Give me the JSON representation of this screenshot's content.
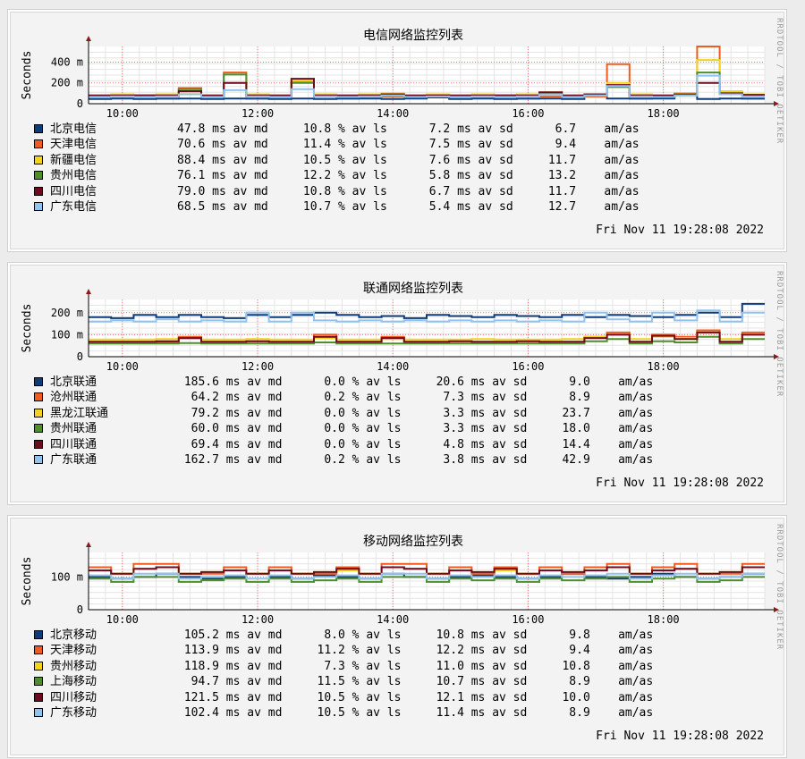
{
  "watermark": "RRDTOOL / TOBI OETIKER",
  "ylabel": "Seconds",
  "timestamp": "Fri Nov 11 19:28:08 2022",
  "x_ticks": [
    "10:00",
    "12:00",
    "14:00",
    "16:00",
    "18:00"
  ],
  "panels": [
    {
      "title": "电信网络监控列表",
      "y_ticks": [
        "0",
        "200 m",
        "400 m"
      ],
      "legend": [
        {
          "name": "北京电信",
          "stats": "47.8 ms av md     10.8 % av ls      7.2 ms av sd      6.7    am/as",
          "color": "#0d3c7a"
        },
        {
          "name": "天津电信",
          "stats": "70.6 ms av md     11.4 % av ls      7.5 ms av sd      9.4    am/as",
          "color": "#f25a1f"
        },
        {
          "name": "新疆电信",
          "stats": "88.4 ms av md     10.5 % av ls      7.6 ms av sd     11.7    am/as",
          "color": "#f5d21b"
        },
        {
          "name": "贵州电信",
          "stats": "76.1 ms av md     12.2 % av ls      5.8 ms av sd     13.2    am/as",
          "color": "#4f8f2a"
        },
        {
          "name": "四川电信",
          "stats": "79.0 ms av md     10.8 % av ls      6.7 ms av sd     11.7    am/as",
          "color": "#6e0a1e"
        },
        {
          "name": "广东电信",
          "stats": "68.5 ms av md     10.7 % av ls      5.4 ms av sd     12.7    am/as",
          "color": "#8fc3f0"
        }
      ]
    },
    {
      "title": "联通网络监控列表",
      "y_ticks": [
        "0",
        "100 m",
        "200 m"
      ],
      "legend": [
        {
          "name": "北京联通",
          "stats": " 185.6 ms av md      0.0 % av ls     20.6 ms av sd      9.0    am/as",
          "color": "#0d3c7a"
        },
        {
          "name": "沧州联通",
          "stats": "  64.2 ms av md      0.2 % av ls      7.3 ms av sd      8.9    am/as",
          "color": "#f25a1f"
        },
        {
          "name": "黑龙江联通",
          "stats": "  79.2 ms av md      0.0 % av ls      3.3 ms av sd     23.7    am/as",
          "color": "#f5d21b"
        },
        {
          "name": "贵州联通",
          "stats": "  60.0 ms av md      0.0 % av ls      3.3 ms av sd     18.0    am/as",
          "color": "#4f8f2a"
        },
        {
          "name": "四川联通",
          "stats": "  69.4 ms av md      0.0 % av ls      4.8 ms av sd     14.4    am/as",
          "color": "#6e0a1e"
        },
        {
          "name": "广东联通",
          "stats": " 162.7 ms av md      0.2 % av ls      3.8 ms av sd     42.9    am/as",
          "color": "#8fc3f0"
        }
      ]
    },
    {
      "title": "移动网络监控列表",
      "y_ticks": [
        "0",
        "100 m"
      ],
      "legend": [
        {
          "name": "北京移动",
          "stats": " 105.2 ms av md      8.0 % av ls     10.8 ms av sd      9.8    am/as",
          "color": "#0d3c7a"
        },
        {
          "name": "天津移动",
          "stats": " 113.9 ms av md     11.2 % av ls     12.2 ms av sd      9.4    am/as",
          "color": "#f25a1f"
        },
        {
          "name": "贵州移动",
          "stats": " 118.9 ms av md      7.3 % av ls     11.0 ms av sd     10.8    am/as",
          "color": "#f5d21b"
        },
        {
          "name": "上海移动",
          "stats": "  94.7 ms av md     11.5 % av ls     10.7 ms av sd      8.9    am/as",
          "color": "#4f8f2a"
        },
        {
          "name": "四川移动",
          "stats": " 121.5 ms av md     10.5 % av ls     12.1 ms av sd     10.0    am/as",
          "color": "#6e0a1e"
        },
        {
          "name": "广东移动",
          "stats": " 102.4 ms av md     10.5 % av ls     11.4 ms av sd      8.9    am/as",
          "color": "#8fc3f0"
        }
      ]
    }
  ],
  "chart_data": [
    {
      "type": "line",
      "title": "电信网络监控列表",
      "ylabel": "Seconds",
      "ylim": [
        0,
        0.55
      ],
      "x_ticks": [
        "10:00",
        "12:00",
        "14:00",
        "16:00",
        "18:00"
      ],
      "series": [
        {
          "name": "北京电信",
          "values": [
            0.045,
            0.05,
            0.045,
            0.048,
            0.05,
            0.045,
            0.05,
            0.048,
            0.045,
            0.05,
            0.045,
            0.048,
            0.05,
            0.045,
            0.05,
            0.06,
            0.045,
            0.05,
            0.045,
            0.048,
            0.05,
            0.045,
            0.08,
            0.05,
            0.048,
            0.05,
            0.1,
            0.045,
            0.05,
            0.048
          ]
        },
        {
          "name": "天津电信",
          "values": [
            0.07,
            0.07,
            0.072,
            0.07,
            0.15,
            0.07,
            0.3,
            0.07,
            0.07,
            0.21,
            0.07,
            0.07,
            0.07,
            0.07,
            0.07,
            0.07,
            0.07,
            0.07,
            0.07,
            0.07,
            0.07,
            0.07,
            0.07,
            0.38,
            0.07,
            0.07,
            0.08,
            0.55,
            0.09,
            0.08
          ]
        },
        {
          "name": "新疆电信",
          "values": [
            0.085,
            0.09,
            0.085,
            0.09,
            0.11,
            0.085,
            0.2,
            0.09,
            0.085,
            0.22,
            0.09,
            0.085,
            0.09,
            0.1,
            0.085,
            0.09,
            0.085,
            0.09,
            0.085,
            0.09,
            0.11,
            0.085,
            0.09,
            0.2,
            0.09,
            0.085,
            0.1,
            0.42,
            0.12,
            0.09
          ]
        },
        {
          "name": "贵州电信",
          "values": [
            0.075,
            0.075,
            0.08,
            0.075,
            0.14,
            0.075,
            0.28,
            0.075,
            0.075,
            0.2,
            0.075,
            0.075,
            0.08,
            0.075,
            0.075,
            0.08,
            0.075,
            0.075,
            0.08,
            0.075,
            0.1,
            0.075,
            0.08,
            0.16,
            0.075,
            0.075,
            0.09,
            0.3,
            0.1,
            0.08
          ]
        },
        {
          "name": "四川电信",
          "values": [
            0.078,
            0.08,
            0.078,
            0.08,
            0.12,
            0.078,
            0.2,
            0.08,
            0.078,
            0.24,
            0.08,
            0.078,
            0.08,
            0.09,
            0.078,
            0.08,
            0.078,
            0.08,
            0.078,
            0.08,
            0.11,
            0.078,
            0.09,
            0.18,
            0.08,
            0.078,
            0.09,
            0.2,
            0.1,
            0.085
          ]
        },
        {
          "name": "广东电信",
          "values": [
            0.065,
            0.07,
            0.065,
            0.07,
            0.09,
            0.065,
            0.13,
            0.07,
            0.065,
            0.14,
            0.07,
            0.065,
            0.07,
            0.08,
            0.065,
            0.07,
            0.065,
            0.07,
            0.065,
            0.07,
            0.09,
            0.065,
            0.08,
            0.17,
            0.07,
            0.065,
            0.08,
            0.27,
            0.09,
            0.07
          ]
        }
      ]
    },
    {
      "type": "line",
      "title": "联通网络监控列表",
      "ylabel": "Seconds",
      "ylim": [
        0,
        0.26
      ],
      "x_ticks": [
        "10:00",
        "12:00",
        "14:00",
        "16:00",
        "18:00"
      ],
      "series": [
        {
          "name": "北京联通",
          "values": [
            0.18,
            0.175,
            0.19,
            0.18,
            0.19,
            0.18,
            0.175,
            0.19,
            0.18,
            0.19,
            0.2,
            0.19,
            0.18,
            0.185,
            0.175,
            0.19,
            0.185,
            0.18,
            0.19,
            0.185,
            0.18,
            0.19,
            0.18,
            0.19,
            0.185,
            0.18,
            0.19,
            0.2,
            0.18,
            0.24
          ]
        },
        {
          "name": "沧州联通",
          "values": [
            0.065,
            0.065,
            0.065,
            0.065,
            0.09,
            0.065,
            0.065,
            0.07,
            0.065,
            0.065,
            0.1,
            0.065,
            0.065,
            0.09,
            0.065,
            0.065,
            0.07,
            0.065,
            0.065,
            0.07,
            0.065,
            0.065,
            0.09,
            0.11,
            0.065,
            0.1,
            0.09,
            0.12,
            0.065,
            0.11
          ]
        },
        {
          "name": "黑龙江联通",
          "values": [
            0.078,
            0.078,
            0.078,
            0.08,
            0.082,
            0.078,
            0.078,
            0.08,
            0.078,
            0.078,
            0.085,
            0.078,
            0.078,
            0.08,
            0.078,
            0.078,
            0.078,
            0.08,
            0.078,
            0.078,
            0.078,
            0.08,
            0.09,
            0.1,
            0.08,
            0.09,
            0.085,
            0.11,
            0.08,
            0.1
          ]
        },
        {
          "name": "贵州联通",
          "values": [
            0.06,
            0.06,
            0.06,
            0.06,
            0.062,
            0.06,
            0.06,
            0.06,
            0.06,
            0.06,
            0.065,
            0.06,
            0.06,
            0.06,
            0.06,
            0.06,
            0.06,
            0.06,
            0.06,
            0.06,
            0.06,
            0.06,
            0.07,
            0.08,
            0.06,
            0.07,
            0.065,
            0.09,
            0.06,
            0.08
          ]
        },
        {
          "name": "四川联通",
          "values": [
            0.068,
            0.068,
            0.068,
            0.07,
            0.085,
            0.068,
            0.068,
            0.07,
            0.068,
            0.068,
            0.09,
            0.068,
            0.068,
            0.085,
            0.068,
            0.068,
            0.07,
            0.068,
            0.068,
            0.07,
            0.068,
            0.068,
            0.085,
            0.1,
            0.068,
            0.095,
            0.08,
            0.11,
            0.068,
            0.1
          ]
        },
        {
          "name": "广东联通",
          "values": [
            0.16,
            0.165,
            0.16,
            0.17,
            0.16,
            0.165,
            0.16,
            0.2,
            0.16,
            0.2,
            0.165,
            0.16,
            0.165,
            0.16,
            0.165,
            0.16,
            0.165,
            0.16,
            0.165,
            0.16,
            0.165,
            0.16,
            0.2,
            0.17,
            0.16,
            0.2,
            0.165,
            0.21,
            0.16,
            0.2
          ]
        }
      ]
    },
    {
      "type": "line",
      "title": "移动网络监控列表",
      "ylabel": "Seconds",
      "ylim": [
        0,
        0.175
      ],
      "x_ticks": [
        "10:00",
        "12:00",
        "14:00",
        "16:00",
        "18:00"
      ],
      "series": [
        {
          "name": "北京移动",
          "values": [
            0.1,
            0.095,
            0.1,
            0.11,
            0.1,
            0.095,
            0.1,
            0.11,
            0.1,
            0.095,
            0.105,
            0.1,
            0.095,
            0.11,
            0.1,
            0.095,
            0.1,
            0.105,
            0.1,
            0.095,
            0.1,
            0.11,
            0.1,
            0.095,
            0.1,
            0.11,
            0.1,
            0.095,
            0.1,
            0.11
          ]
        },
        {
          "name": "天津移动",
          "values": [
            0.13,
            0.11,
            0.14,
            0.14,
            0.11,
            0.11,
            0.13,
            0.11,
            0.13,
            0.11,
            0.11,
            0.13,
            0.11,
            0.14,
            0.14,
            0.11,
            0.13,
            0.11,
            0.13,
            0.11,
            0.13,
            0.11,
            0.13,
            0.14,
            0.11,
            0.13,
            0.14,
            0.11,
            0.11,
            0.14
          ]
        },
        {
          "name": "贵州移动",
          "values": [
            0.12,
            0.11,
            0.125,
            0.13,
            0.11,
            0.115,
            0.12,
            0.11,
            0.12,
            0.11,
            0.115,
            0.12,
            0.11,
            0.13,
            0.125,
            0.11,
            0.12,
            0.115,
            0.12,
            0.11,
            0.12,
            0.115,
            0.12,
            0.13,
            0.11,
            0.12,
            0.125,
            0.11,
            0.115,
            0.13
          ]
        },
        {
          "name": "上海移动",
          "values": [
            0.095,
            0.085,
            0.1,
            0.1,
            0.085,
            0.09,
            0.095,
            0.085,
            0.095,
            0.085,
            0.09,
            0.095,
            0.085,
            0.1,
            0.1,
            0.085,
            0.095,
            0.09,
            0.095,
            0.085,
            0.095,
            0.09,
            0.095,
            0.1,
            0.085,
            0.095,
            0.1,
            0.085,
            0.09,
            0.1
          ]
        },
        {
          "name": "四川移动",
          "values": [
            0.12,
            0.11,
            0.125,
            0.13,
            0.11,
            0.115,
            0.12,
            0.11,
            0.12,
            0.11,
            0.115,
            0.125,
            0.11,
            0.13,
            0.125,
            0.11,
            0.12,
            0.115,
            0.125,
            0.11,
            0.12,
            0.115,
            0.12,
            0.13,
            0.11,
            0.12,
            0.125,
            0.11,
            0.115,
            0.13
          ]
        },
        {
          "name": "广东移动",
          "values": [
            0.105,
            0.095,
            0.11,
            0.11,
            0.095,
            0.1,
            0.105,
            0.095,
            0.105,
            0.095,
            0.1,
            0.105,
            0.095,
            0.11,
            0.11,
            0.095,
            0.105,
            0.1,
            0.105,
            0.095,
            0.105,
            0.1,
            0.105,
            0.11,
            0.095,
            0.105,
            0.11,
            0.095,
            0.1,
            0.11
          ]
        }
      ]
    }
  ]
}
